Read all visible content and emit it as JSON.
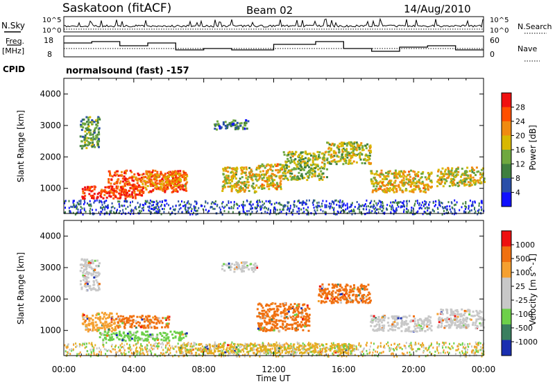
{
  "header": {
    "site": "Saskatoon (fitACF)",
    "beam": "Beam 02",
    "date": "14/Aug/2010"
  },
  "nsky_panel": {
    "left_label": "N.Sky",
    "right_label": "N.Search",
    "left_ticks": [
      "10^5",
      "10^0"
    ],
    "right_ticks": [
      "10^5",
      "10^0"
    ]
  },
  "freq_panel": {
    "left_label_1": "Freq.",
    "left_label_2": "[MHz]",
    "right_label": "Nave",
    "left_ticks": [
      "18",
      "8"
    ],
    "right_ticks": [
      "60",
      "0"
    ]
  },
  "cpid": {
    "label": "CPID",
    "value": "normalsound (fast) -157"
  },
  "chart_data": [
    {
      "type": "heatmap",
      "name": "power",
      "ylabel": "Slant Range [km]",
      "xlabel": "Time UT",
      "x_ticks": [
        "00:00",
        "04:00",
        "08:00",
        "12:00",
        "16:00",
        "20:00",
        "00:00"
      ],
      "y_ticks": [
        "1000",
        "2000",
        "3000",
        "4000"
      ],
      "ylim": [
        200,
        4500
      ],
      "xlim_hours": [
        0,
        24
      ],
      "colorbar": {
        "label": "Power [dB]",
        "ticks": [
          "4",
          "8",
          "12",
          "16",
          "20",
          "24",
          "28"
        ],
        "colors": [
          "#1010ff",
          "#2a4fa8",
          "#3f7f3f",
          "#6fa83f",
          "#d8b800",
          "#f08a10",
          "#ff5000",
          "#f01010"
        ]
      },
      "echo_regions": [
        {
          "t0": 0.9,
          "t1": 2.0,
          "r0": 2300,
          "r1": 3300,
          "level": 0.35
        },
        {
          "t0": 1.0,
          "t1": 4.5,
          "r0": 700,
          "r1": 1100,
          "level": 0.95
        },
        {
          "t0": 2.5,
          "t1": 7.0,
          "r0": 900,
          "r1": 1600,
          "level": 0.85
        },
        {
          "t0": 4.5,
          "t1": 7.0,
          "r0": 1100,
          "r1": 1500,
          "level": 0.7
        },
        {
          "t0": 8.5,
          "t1": 10.5,
          "r0": 2900,
          "r1": 3200,
          "level": 0.25
        },
        {
          "t0": 9.0,
          "t1": 11.0,
          "r0": 900,
          "r1": 1700,
          "level": 0.55
        },
        {
          "t0": 11.0,
          "t1": 12.5,
          "r0": 1000,
          "r1": 1800,
          "level": 0.6
        },
        {
          "t0": 12.5,
          "t1": 15.0,
          "r0": 1300,
          "r1": 2200,
          "level": 0.45
        },
        {
          "t0": 15.0,
          "t1": 17.5,
          "r0": 1800,
          "r1": 2500,
          "level": 0.5
        },
        {
          "t0": 17.5,
          "t1": 21.0,
          "r0": 900,
          "r1": 1600,
          "level": 0.6
        },
        {
          "t0": 21.3,
          "t1": 24.0,
          "r0": 1100,
          "r1": 1700,
          "level": 0.55
        }
      ]
    },
    {
      "type": "heatmap",
      "name": "velocity",
      "ylabel": "Slant Range [km]",
      "xlabel": "Time UT",
      "x_ticks": [
        "00:00",
        "04:00",
        "08:00",
        "12:00",
        "16:00",
        "20:00",
        "00:00"
      ],
      "y_ticks": [
        "1000",
        "2000",
        "3000",
        "4000"
      ],
      "ylim": [
        200,
        4500
      ],
      "xlim_hours": [
        0,
        24
      ],
      "colorbar": {
        "label": "Velocity [m s^-1]",
        "ticks": [
          "1000",
          "500",
          "100",
          "25",
          "-25",
          "-100",
          "-500",
          "-1000"
        ],
        "colors": [
          "#1a2fb0",
          "#3a7f5f",
          "#6dd04a",
          "#c8c8c8",
          "#c8c8c8",
          "#f5a030",
          "#f07010",
          "#ee1010"
        ]
      },
      "echo_regions": [
        {
          "t0": 0.9,
          "t1": 2.0,
          "r0": 2300,
          "r1": 3300,
          "color": "#c8c8c8"
        },
        {
          "t0": 1.0,
          "t1": 3.0,
          "r0": 1000,
          "r1": 1600,
          "color": "#f5a030"
        },
        {
          "t0": 3.0,
          "t1": 6.0,
          "r0": 1100,
          "r1": 1500,
          "color": "#f07010"
        },
        {
          "t0": 2.0,
          "t1": 7.0,
          "r0": 700,
          "r1": 1000,
          "color": "#6dd04a"
        },
        {
          "t0": 6.5,
          "t1": 16.5,
          "r0": 300,
          "r1": 600,
          "color": "#e0b020"
        },
        {
          "t0": 9.0,
          "t1": 11.0,
          "r0": 2900,
          "r1": 3200,
          "color": "#c8c8c8"
        },
        {
          "t0": 11.0,
          "t1": 14.0,
          "r0": 1000,
          "r1": 1900,
          "color": "#f07010"
        },
        {
          "t0": 14.5,
          "t1": 17.5,
          "r0": 1900,
          "r1": 2500,
          "color": "#f07010"
        },
        {
          "t0": 17.5,
          "t1": 21.0,
          "r0": 1000,
          "r1": 1500,
          "color": "#c8c8c8"
        },
        {
          "t0": 21.3,
          "t1": 24.0,
          "r0": 1100,
          "r1": 1700,
          "color": "#c8c8c8"
        }
      ]
    }
  ]
}
